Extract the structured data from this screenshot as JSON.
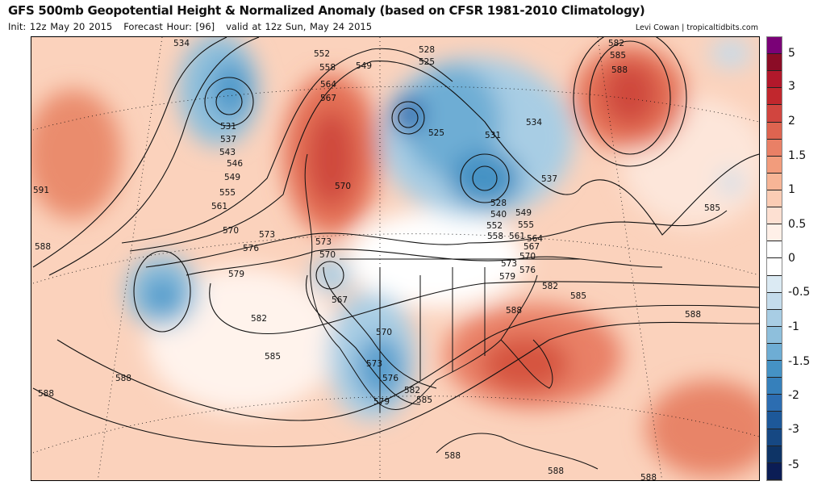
{
  "header": {
    "title": "GFS 500mb Geopotential Height & Normalized Anomaly (based on CFSR 1981-2010 Climatology)",
    "init": "Init: 12z May 20 2015",
    "forecast_hour": "Forecast Hour: [96]",
    "valid": "valid at 12z Sun, May 24 2015",
    "credit": "Levi Cowan | tropicaltidbits.com"
  },
  "colorbar": {
    "colors": [
      "#7a0177",
      "#8b0c26",
      "#b2182b",
      "#c1272d",
      "#d1453f",
      "#de6450",
      "#e98066",
      "#f29c7c",
      "#f7b596",
      "#fbccb4",
      "#fde0d2",
      "#fff0e8",
      "#ffffff",
      "#ffffff",
      "#dbeaf3",
      "#c4dcec",
      "#a8cde4",
      "#8ebfdc",
      "#6eadd4",
      "#4592c4",
      "#3680bb",
      "#2c6db1",
      "#1d5899",
      "#164883",
      "#0e3466",
      "#0b1d55"
    ],
    "labels": [
      "5",
      "3",
      "2",
      "1.5",
      "1",
      "0.5",
      "0",
      "-0.5",
      "-1",
      "-1.5",
      "-2",
      "-3",
      "-5"
    ]
  },
  "contour_labels": [
    "534",
    "552",
    "558",
    "549",
    "564",
    "567",
    "528",
    "525",
    "531",
    "537",
    "543",
    "546",
    "549",
    "555",
    "561",
    "570",
    "573",
    "576",
    "579",
    "582",
    "585",
    "588",
    "588",
    "588",
    "591",
    "570",
    "573",
    "570",
    "567",
    "570",
    "573",
    "576",
    "579",
    "582",
    "585",
    "588",
    "588",
    "588",
    "531",
    "534",
    "537",
    "528",
    "540",
    "549",
    "552",
    "555",
    "558",
    "561",
    "564",
    "567",
    "570",
    "573",
    "576",
    "579",
    "582",
    "585",
    "588",
    "588",
    "585",
    "582",
    "585",
    "588",
    "525"
  ]
}
